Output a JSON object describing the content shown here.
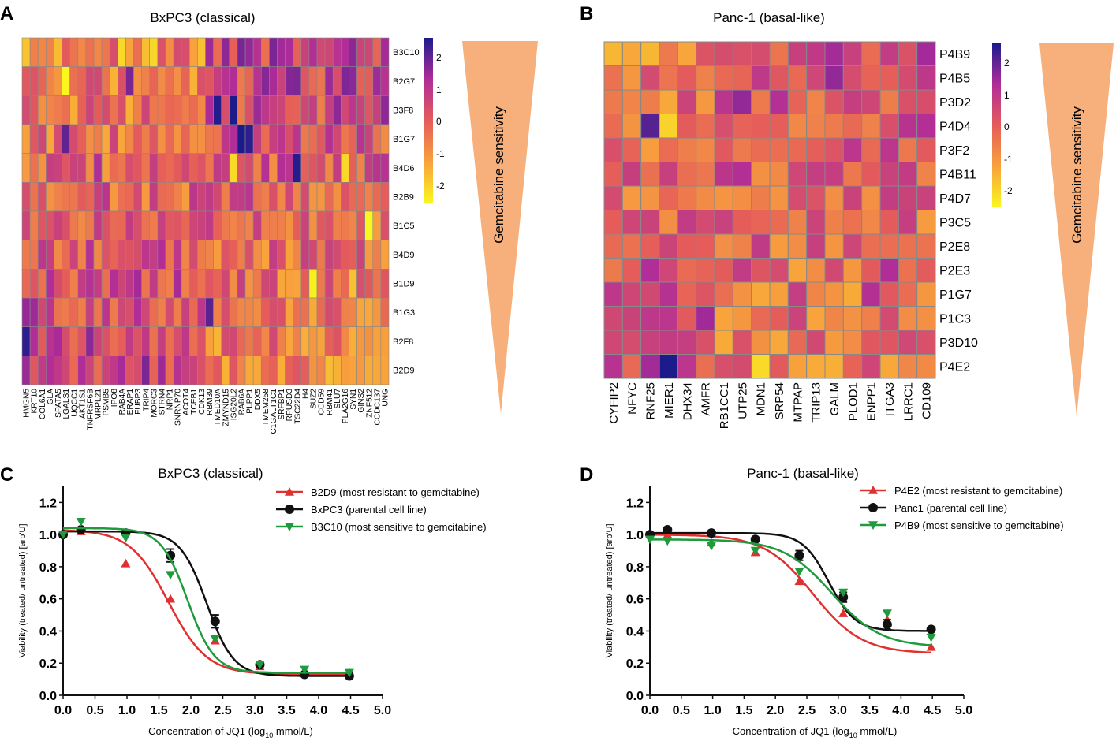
{
  "chart_data": [
    {
      "panel": "A",
      "type": "heatmap",
      "title": "BxPC3 (classical)",
      "rows": [
        "B3C10",
        "B2G7",
        "B3F8",
        "B1G7",
        "B4D6",
        "B2B9",
        "B1C5",
        "B4D9",
        "B1D9",
        "B1G3",
        "B2F8",
        "B2D9"
      ],
      "columns": [
        "HMGN5",
        "KRT10",
        "COL6A1",
        "GLA",
        "SPATA5",
        "LGALS1",
        "UQCC1",
        "AKT1S1",
        "TNFRSF6B",
        "MRPL21",
        "PSMB5",
        "IPO8",
        "RAB4A",
        "ERAP1",
        "FUBP3",
        "TRIP4",
        "MORC3",
        "STRN4",
        "NRP1",
        "SNRNP70",
        "ACOT4",
        "TCEB1",
        "CDK13",
        "RBM39",
        "TMED10A",
        "ZMYND15",
        "ISG20L2",
        "RAB6A",
        "PLPP1",
        "DDX5",
        "TMEM258",
        "C1GALT1C1",
        "SRFBP1",
        "RPUSD3",
        "TSC22D4",
        "H4",
        "SUZ2",
        "CCD59",
        "RBM41",
        "SLU7",
        "PLA2G16",
        "SYN1",
        "GINS2",
        "ZNF512",
        "CCDC137",
        "UNG"
      ],
      "colorbar": {
        "ticks": [
          "2",
          "1",
          "0",
          "-1",
          "-2"
        ],
        "range": [
          -2.5,
          2.5
        ]
      },
      "annotation": "Gemcitabine sensitivity"
    },
    {
      "panel": "B",
      "type": "heatmap",
      "title": "Panc-1 (basal-like)",
      "rows": [
        "P4B9",
        "P4B5",
        "P3D2",
        "P4D4",
        "P3F2",
        "P4B11",
        "P4D7",
        "P3C5",
        "P2E8",
        "P2E3",
        "P1G7",
        "P1C3",
        "P3D10",
        "P4E2"
      ],
      "columns": [
        "CYFIP2",
        "NFYC",
        "RNF25",
        "MIER1",
        "DHX34",
        "AMFR",
        "RB1CC1",
        "UTP25",
        "MDN1",
        "SRP54",
        "MTPAP",
        "TRIP13",
        "GALM",
        "PLOD1",
        "ENPP1",
        "ITGA3",
        "LRRC1",
        "CD109"
      ],
      "colorbar": {
        "ticks": [
          "2",
          "1",
          "0",
          "-1",
          "-2"
        ],
        "range": [
          -2.5,
          2.5
        ]
      },
      "annotation": "Gemcitabine sensitivity"
    },
    {
      "panel": "C",
      "type": "line",
      "title": "BxPC3 (classical)",
      "xlabel": "Concentration of JQ1 (log",
      "xlabel_sub": "10",
      "xlabel_tail": " mmol/L)",
      "ylabel": "Viability (treated/ untreated) [arb'U]",
      "xlim": [
        0,
        5
      ],
      "ylim": [
        0,
        1.3
      ],
      "xticks": [
        "0.0",
        "0.5",
        "1.0",
        "1.5",
        "2.0",
        "2.5",
        "3.0",
        "3.5",
        "4.0",
        "4.5",
        "5.0"
      ],
      "yticks": [
        "0.0",
        "0.2",
        "0.4",
        "0.6",
        "0.8",
        "1.0",
        "1.2"
      ],
      "series": [
        {
          "name": "B2D9 (most resistant to gemcitabine)",
          "color": "#e03030",
          "marker": "triangle-up",
          "x": [
            0,
            0.28,
            0.98,
            1.68,
            2.38,
            3.08,
            3.78,
            4.48
          ],
          "y": [
            1.0,
            1.02,
            0.82,
            0.6,
            0.34,
            0.18,
            0.15,
            0.14
          ],
          "curve": {
            "bottom": 0.13,
            "top": 1.03,
            "ec50": 1.65,
            "slope": 0.9
          }
        },
        {
          "name": "BxPC3 (parental cell line)",
          "color": "#111111",
          "marker": "circle",
          "x": [
            0,
            0.28,
            0.98,
            1.68,
            2.38,
            3.08,
            3.78,
            4.48
          ],
          "y": [
            1.0,
            1.03,
            1.01,
            0.87,
            0.46,
            0.19,
            0.13,
            0.12
          ],
          "err": [
            0,
            0.01,
            0.01,
            0.04,
            0.04,
            0.01,
            0.01,
            0.01
          ],
          "curve": {
            "bottom": 0.12,
            "top": 1.02,
            "ec50": 2.25,
            "slope": 1.3
          }
        },
        {
          "name": "B3C10 (most sensitive to gemcitabine)",
          "color": "#1f9a3c",
          "marker": "triangle-down",
          "x": [
            0,
            0.28,
            0.98,
            1.68,
            2.38,
            3.08,
            3.78,
            4.48
          ],
          "y": [
            1.0,
            1.08,
            0.98,
            0.75,
            0.35,
            0.19,
            0.16,
            0.14
          ],
          "curve": {
            "bottom": 0.14,
            "top": 1.04,
            "ec50": 1.95,
            "slope": 1.3
          }
        }
      ]
    },
    {
      "panel": "D",
      "type": "line",
      "title": "Panc-1 (basal-like)",
      "xlabel": "Concentration of JQ1 (log",
      "xlabel_sub": "10",
      "xlabel_tail": " mmol/L)",
      "ylabel": "Viability (treated/ untreated) [arb'U]",
      "xlim": [
        0,
        5
      ],
      "ylim": [
        0,
        1.3
      ],
      "xticks": [
        "0.0",
        "0.5",
        "1.0",
        "1.5",
        "2.0",
        "2.5",
        "3.0",
        "3.5",
        "4.0",
        "4.5",
        "5.0"
      ],
      "yticks": [
        "0.0",
        "0.2",
        "0.4",
        "0.6",
        "0.8",
        "1.0",
        "1.2"
      ],
      "series": [
        {
          "name": "P4E2 (most resistant to gemcitabine)",
          "color": "#e03030",
          "marker": "triangle-up",
          "x": [
            0,
            0.28,
            0.98,
            1.68,
            2.38,
            3.08,
            3.78,
            4.48
          ],
          "y": [
            1.0,
            1.0,
            0.95,
            0.89,
            0.71,
            0.51,
            0.47,
            0.3
          ],
          "curve": {
            "bottom": 0.26,
            "top": 1.0,
            "ec50": 2.6,
            "slope": 0.7
          }
        },
        {
          "name": "Panc1 (parental cell line)",
          "color": "#111111",
          "marker": "circle",
          "x": [
            0,
            0.28,
            0.98,
            1.68,
            2.38,
            3.08,
            3.78,
            4.48
          ],
          "y": [
            1.0,
            1.03,
            1.01,
            0.97,
            0.87,
            0.61,
            0.44,
            0.41
          ],
          "err": [
            0,
            0.01,
            0.01,
            0.01,
            0.03,
            0.03,
            0.03,
            0.01
          ],
          "curve": {
            "bottom": 0.4,
            "top": 1.01,
            "ec50": 2.85,
            "slope": 1.3
          }
        },
        {
          "name": "P4B9 (most sensitive to gemcitabine)",
          "color": "#1f9a3c",
          "marker": "triangle-down",
          "x": [
            0,
            0.28,
            0.98,
            1.68,
            2.38,
            3.08,
            3.78,
            4.48
          ],
          "y": [
            0.97,
            0.96,
            0.93,
            0.9,
            0.77,
            0.64,
            0.51,
            0.36
          ],
          "curve": {
            "bottom": 0.3,
            "top": 0.97,
            "ec50": 2.9,
            "slope": 0.7
          }
        }
      ]
    }
  ]
}
